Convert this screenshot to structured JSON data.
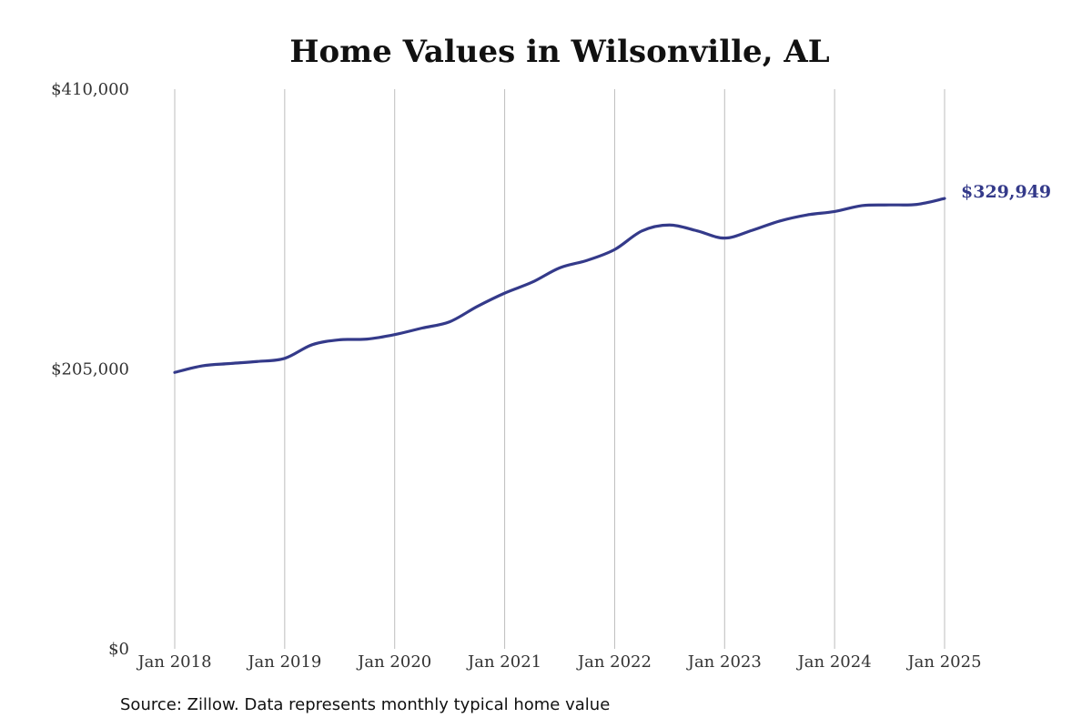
{
  "chart_data": {
    "type": "line",
    "title": "Home Values in Wilsonville, AL",
    "xlabel": "",
    "ylabel": "",
    "ylim": [
      0,
      410000
    ],
    "yticks": [
      {
        "value": 0,
        "label": "$0"
      },
      {
        "value": 205000,
        "label": "$205,000"
      },
      {
        "value": 410000,
        "label": "$410,000"
      }
    ],
    "xlim": [
      2018.0,
      2025.0
    ],
    "xticks": [
      {
        "value": 2018,
        "label": "Jan 2018"
      },
      {
        "value": 2019,
        "label": "Jan 2019"
      },
      {
        "value": 2020,
        "label": "Jan 2020"
      },
      {
        "value": 2021,
        "label": "Jan 2021"
      },
      {
        "value": 2022,
        "label": "Jan 2022"
      },
      {
        "value": 2023,
        "label": "Jan 2023"
      },
      {
        "value": 2024,
        "label": "Jan 2024"
      },
      {
        "value": 2025,
        "label": "Jan 2025"
      }
    ],
    "grid": {
      "vertical": true,
      "horizontal": false
    },
    "series": [
      {
        "color": "#343a8a",
        "points": [
          {
            "x": "Jan 2018",
            "y": 202500
          },
          {
            "x": "Apr 2018",
            "y": 207300
          },
          {
            "x": "Jul 2018",
            "y": 209000
          },
          {
            "x": "Oct 2018",
            "y": 210500
          },
          {
            "x": "Jan 2019",
            "y": 212800
          },
          {
            "x": "Apr 2019",
            "y": 222800
          },
          {
            "x": "Jul 2019",
            "y": 226400
          },
          {
            "x": "Oct 2019",
            "y": 226900
          },
          {
            "x": "Jan 2020",
            "y": 230200
          },
          {
            "x": "Apr 2020",
            "y": 235000
          },
          {
            "x": "Jul 2020",
            "y": 239600
          },
          {
            "x": "Oct 2020",
            "y": 250800
          },
          {
            "x": "Jan 2021",
            "y": 260600
          },
          {
            "x": "Apr 2021",
            "y": 268600
          },
          {
            "x": "Jul 2021",
            "y": 279100
          },
          {
            "x": "Oct 2021",
            "y": 284600
          },
          {
            "x": "Jan 2022",
            "y": 292500
          },
          {
            "x": "Apr 2022",
            "y": 306200
          },
          {
            "x": "Jul 2022",
            "y": 310500
          },
          {
            "x": "Oct 2022",
            "y": 306200
          },
          {
            "x": "Jan 2023",
            "y": 300900
          },
          {
            "x": "Apr 2023",
            "y": 306600
          },
          {
            "x": "Jul 2023",
            "y": 313400
          },
          {
            "x": "Oct 2023",
            "y": 317900
          },
          {
            "x": "Jan 2024",
            "y": 320400
          },
          {
            "x": "Apr 2024",
            "y": 324700
          },
          {
            "x": "Jul 2024",
            "y": 325200
          },
          {
            "x": "Oct 2024",
            "y": 325600
          },
          {
            "x": "Jan 2025",
            "y": 329949
          }
        ]
      }
    ],
    "end_label": "$329,949"
  },
  "footer": {
    "source": "Source: Zillow. Data represents monthly typical home value"
  }
}
